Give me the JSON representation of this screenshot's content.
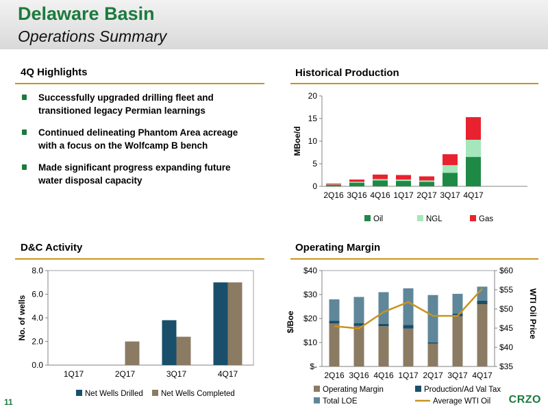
{
  "header": {
    "title": "Delaware Basin",
    "subtitle": "Operations Summary"
  },
  "highlights": {
    "heading": "4Q Highlights",
    "items": [
      "Successfully upgraded drilling fleet and transitioned legacy Permian learnings",
      "Continued delineating Phantom Area acreage with a focus on the Wolfcamp B bench",
      "Made significant progress expanding future water disposal capacity"
    ]
  },
  "colors": {
    "brand_green": "#1b7a3d",
    "rule_gold": "#c8931e",
    "oil": "#1e8a45",
    "ngl": "#a6e6bc",
    "gas": "#e8222e",
    "wells_drilled": "#194f6b",
    "wells_completed": "#8b7b63",
    "operating_margin": "#8b7b63",
    "prod_tax": "#194f6b",
    "total_loe": "#5f8799",
    "wti": "#c8931e"
  },
  "chart_data": [
    {
      "id": "production",
      "heading": "Historical Production",
      "type": "bar",
      "stacked": true,
      "title": "",
      "xlabel": "",
      "ylabel": "MBoe/d",
      "ylim": [
        0,
        20
      ],
      "yticks": [
        "0",
        "5",
        "10",
        "15",
        "20"
      ],
      "categories": [
        "2Q16",
        "3Q16",
        "4Q16",
        "1Q17",
        "2Q17",
        "3Q17",
        "4Q17"
      ],
      "series": [
        {
          "name": "Oil",
          "values": [
            0.3,
            0.8,
            1.3,
            1.2,
            1.0,
            3.0,
            6.5
          ]
        },
        {
          "name": "NGL",
          "values": [
            0.1,
            0.2,
            0.3,
            0.3,
            0.3,
            1.7,
            3.8
          ]
        },
        {
          "name": "Gas",
          "values": [
            0.2,
            0.5,
            1.0,
            1.0,
            0.9,
            2.4,
            5.0
          ]
        }
      ],
      "legend_position": "bottom"
    },
    {
      "id": "dc_activity",
      "heading": "D&C Activity",
      "type": "bar",
      "stacked": false,
      "title": "",
      "xlabel": "",
      "ylabel": "No. of wells",
      "ylim": [
        0,
        8
      ],
      "yticks": [
        "0.0",
        "2.0",
        "4.0",
        "6.0",
        "8.0"
      ],
      "categories": [
        "1Q17",
        "2Q17",
        "3Q17",
        "4Q17"
      ],
      "series": [
        {
          "name": "Net Wells Drilled",
          "values": [
            0,
            0,
            3.8,
            7.0
          ]
        },
        {
          "name": "Net Wells Completed",
          "values": [
            0,
            2.0,
            2.4,
            7.0
          ]
        }
      ],
      "legend_position": "bottom"
    },
    {
      "id": "operating_margin",
      "heading": "Operating Margin",
      "type": "bar",
      "stacked": true,
      "title": "",
      "xlabel": "",
      "ylabel": "$/Boe",
      "y2label": "WTI Oil Price",
      "ylim": [
        0,
        40
      ],
      "y2lim": [
        35,
        60
      ],
      "yticks": [
        "$-",
        "$10",
        "$20",
        "$30",
        "$40"
      ],
      "y2ticks": [
        "$35",
        "$40",
        "$45",
        "$50",
        "$55",
        "$60"
      ],
      "categories": [
        "2Q16",
        "3Q16",
        "4Q16",
        "1Q17",
        "2Q17",
        "3Q17",
        "4Q17"
      ],
      "series": [
        {
          "name": "Operating Margin",
          "values": [
            18.0,
            17.0,
            16.8,
            15.8,
            9.5,
            21.0,
            26.0
          ]
        },
        {
          "name": "Production/Ad Val Tax",
          "values": [
            1.0,
            1.0,
            1.0,
            1.5,
            0.5,
            1.0,
            1.5
          ]
        },
        {
          "name": "Total LOE",
          "values": [
            9.0,
            11.0,
            13.2,
            15.3,
            19.8,
            8.3,
            5.8
          ]
        },
        {
          "name": "Average WTI Oil",
          "type": "line",
          "axis": "y2",
          "values": [
            45.5,
            44.9,
            49.2,
            51.8,
            48.2,
            48.2,
            55.3
          ]
        }
      ],
      "legend_position": "bottom"
    }
  ],
  "footer": {
    "page_number": "11",
    "logo": "CRZO"
  }
}
